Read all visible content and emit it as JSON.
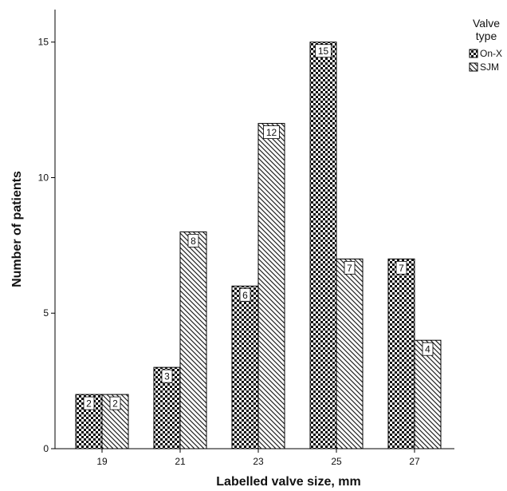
{
  "chart_data": {
    "type": "bar",
    "title": "",
    "xlabel": "Labelled valve size, mm",
    "ylabel": "Number of patients",
    "categories": [
      "19",
      "21",
      "23",
      "25",
      "27"
    ],
    "ylim": [
      0,
      16.2
    ],
    "yticks": [
      "0",
      "5",
      "10",
      "15"
    ],
    "grid": false,
    "legend": {
      "title_line1": "Valve",
      "title_line2": "type",
      "placement": "top-right"
    },
    "series": [
      {
        "name": "On-X",
        "pattern": "checker",
        "values": [
          2,
          3,
          6,
          15,
          7
        ]
      },
      {
        "name": "SJM",
        "pattern": "diagonal",
        "values": [
          2,
          8,
          12,
          7,
          4
        ]
      }
    ]
  }
}
